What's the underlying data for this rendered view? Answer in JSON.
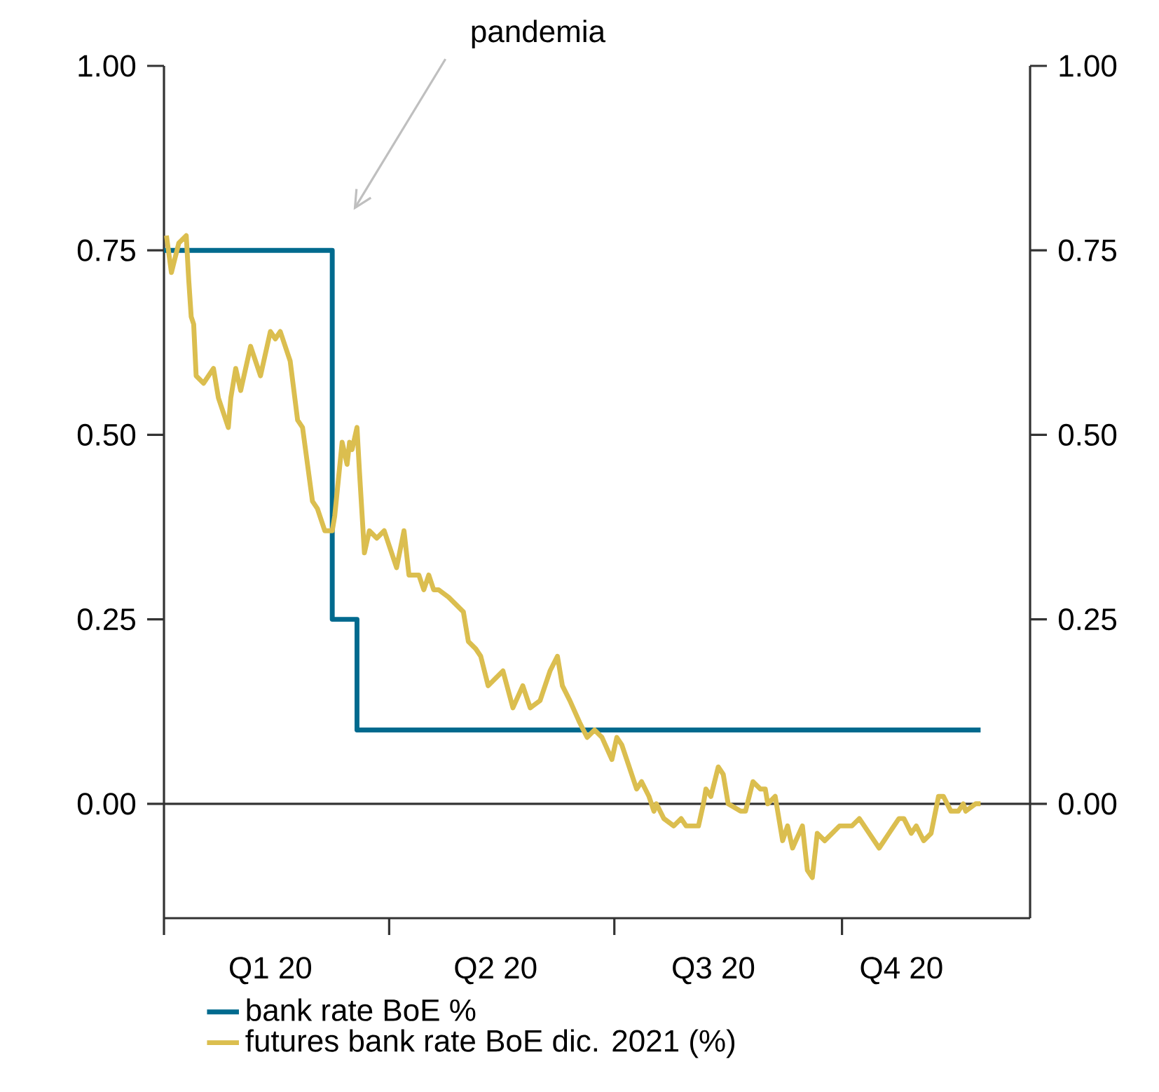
{
  "chart_data": {
    "type": "line",
    "series": [
      {
        "name": "bank rate BoE %",
        "type": "step",
        "color": "#006a8e",
        "x": [
          "2020-01-01",
          "2020-03-09",
          "2020-03-19",
          "2020-11-26"
        ],
        "values": [
          0.75,
          0.25,
          0.1,
          0.1
        ]
      },
      {
        "name": "futures bank rate BoE dic. 2021 (%)",
        "color": "#dbbe4f",
        "x": [
          "2020-01-02",
          "2020-01-04",
          "2020-01-07",
          "2020-01-10",
          "2020-01-11",
          "2020-01-12",
          "2020-01-13",
          "2020-01-14",
          "2020-01-17",
          "2020-01-21",
          "2020-01-23",
          "2020-01-27",
          "2020-01-28",
          "2020-01-30",
          "2020-02-01",
          "2020-02-05",
          "2020-02-09",
          "2020-02-13",
          "2020-02-15",
          "2020-02-17",
          "2020-02-21",
          "2020-02-24",
          "2020-02-26",
          "2020-03-01",
          "2020-03-03",
          "2020-03-06",
          "2020-03-09",
          "2020-03-10",
          "2020-03-13",
          "2020-03-15",
          "2020-03-16",
          "2020-03-17",
          "2020-03-19",
          "2020-03-20",
          "2020-03-22",
          "2020-03-24",
          "2020-03-27",
          "2020-03-30",
          "2020-04-01",
          "2020-04-04",
          "2020-04-07",
          "2020-04-09",
          "2020-04-13",
          "2020-04-15",
          "2020-04-17",
          "2020-04-19",
          "2020-04-21",
          "2020-04-25",
          "2020-04-28",
          "2020-05-01",
          "2020-05-03",
          "2020-05-06",
          "2020-05-08",
          "2020-05-11",
          "2020-05-14",
          "2020-05-17",
          "2020-05-21",
          "2020-05-25",
          "2020-05-28",
          "2020-06-01",
          "2020-06-05",
          "2020-06-08",
          "2020-06-10",
          "2020-06-13",
          "2020-06-17",
          "2020-06-20",
          "2020-06-23",
          "2020-06-26",
          "2020-06-30",
          "2020-07-02",
          "2020-07-04",
          "2020-07-08",
          "2020-07-10",
          "2020-07-12",
          "2020-07-15",
          "2020-07-17",
          "2020-07-18",
          "2020-07-21",
          "2020-07-25",
          "2020-07-28",
          "2020-07-30",
          "2020-08-02",
          "2020-08-04",
          "2020-08-06",
          "2020-08-07",
          "2020-08-09",
          "2020-08-12",
          "2020-08-14",
          "2020-08-16",
          "2020-08-21",
          "2020-08-23",
          "2020-08-26",
          "2020-08-29",
          "2020-08-31",
          "2020-09-01",
          "2020-09-04",
          "2020-09-07",
          "2020-09-09",
          "2020-09-11",
          "2020-09-15",
          "2020-09-17",
          "2020-09-19",
          "2020-09-21",
          "2020-09-24",
          "2020-09-27",
          "2020-09-30",
          "2020-10-03",
          "2020-10-05",
          "2020-10-08",
          "2020-10-12",
          "2020-10-16",
          "2020-10-18",
          "2020-10-20",
          "2020-10-24",
          "2020-10-26",
          "2020-10-29",
          "2020-10-31",
          "2020-11-03",
          "2020-11-06",
          "2020-11-09",
          "2020-11-11",
          "2020-11-14",
          "2020-11-17",
          "2020-11-19",
          "2020-11-20",
          "2020-11-24",
          "2020-11-26"
        ],
        "values": [
          0.77,
          0.72,
          0.76,
          0.77,
          0.71,
          0.66,
          0.65,
          0.58,
          0.57,
          0.59,
          0.55,
          0.51,
          0.55,
          0.59,
          0.56,
          0.62,
          0.58,
          0.64,
          0.63,
          0.64,
          0.6,
          0.52,
          0.51,
          0.41,
          0.4,
          0.37,
          0.37,
          0.39,
          0.49,
          0.46,
          0.49,
          0.48,
          0.51,
          0.45,
          0.34,
          0.37,
          0.36,
          0.37,
          0.35,
          0.32,
          0.37,
          0.31,
          0.31,
          0.29,
          0.31,
          0.29,
          0.29,
          0.28,
          0.27,
          0.26,
          0.22,
          0.21,
          0.2,
          0.16,
          0.17,
          0.18,
          0.13,
          0.16,
          0.13,
          0.14,
          0.18,
          0.2,
          0.16,
          0.14,
          0.11,
          0.09,
          0.1,
          0.09,
          0.06,
          0.09,
          0.08,
          0.04,
          0.02,
          0.03,
          0.01,
          -0.01,
          0.0,
          -0.02,
          -0.03,
          -0.02,
          -0.03,
          -0.03,
          -0.03,
          0.0,
          0.02,
          0.01,
          0.05,
          0.04,
          0.0,
          -0.01,
          -0.01,
          0.03,
          0.02,
          0.02,
          0.0,
          0.01,
          -0.05,
          -0.03,
          -0.06,
          -0.03,
          -0.09,
          -0.1,
          -0.04,
          -0.05,
          -0.04,
          -0.03,
          -0.03,
          -0.03,
          -0.02,
          -0.04,
          -0.06,
          -0.05,
          -0.04,
          -0.02,
          -0.02,
          -0.04,
          -0.03,
          -0.05,
          -0.04,
          0.01,
          0.01,
          -0.01,
          -0.01,
          0.0,
          -0.01,
          0.0,
          0.0
        ]
      }
    ],
    "xlim": [
      "2020-01-01",
      "2020-12-16"
    ],
    "xticks": [
      {
        "value": "2020-01-01",
        "label": null
      },
      {
        "value": "2020-04-01",
        "label": null
      },
      {
        "value": "2020-07-01",
        "label": null
      },
      {
        "value": "2020-10-01",
        "label": null
      },
      {
        "value": "2020-02-13",
        "label": "Q1 20"
      },
      {
        "value": "2020-05-14",
        "label": "Q2 20"
      },
      {
        "value": "2020-08-10",
        "label": "Q3 20"
      },
      {
        "value": "2020-10-25",
        "label": "Q4 20"
      }
    ],
    "ylim": [
      -0.155,
      1.0
    ],
    "yticks": [
      {
        "value": 0,
        "label": "0.00"
      },
      {
        "value": 0.25,
        "label": "0.25"
      },
      {
        "value": 0.5,
        "label": "0.50"
      },
      {
        "value": 0.75,
        "label": "0.75"
      },
      {
        "value": 1.0,
        "label": "1.00"
      }
    ],
    "y2lim": [
      -0.155,
      1.0
    ],
    "y2ticks": [
      {
        "value": 0,
        "label": "0.00"
      },
      {
        "value": 0.25,
        "label": "0.25"
      },
      {
        "value": 0.5,
        "label": "0.50"
      },
      {
        "value": 0.75,
        "label": "0.75"
      },
      {
        "value": 1.0,
        "label": "1.00"
      }
    ],
    "ref_lines": [
      {
        "axis": "y",
        "value": 0,
        "color": "#333333"
      }
    ],
    "annotations": [
      "pandemia"
    ],
    "legend": "bottom",
    "grid": false
  }
}
